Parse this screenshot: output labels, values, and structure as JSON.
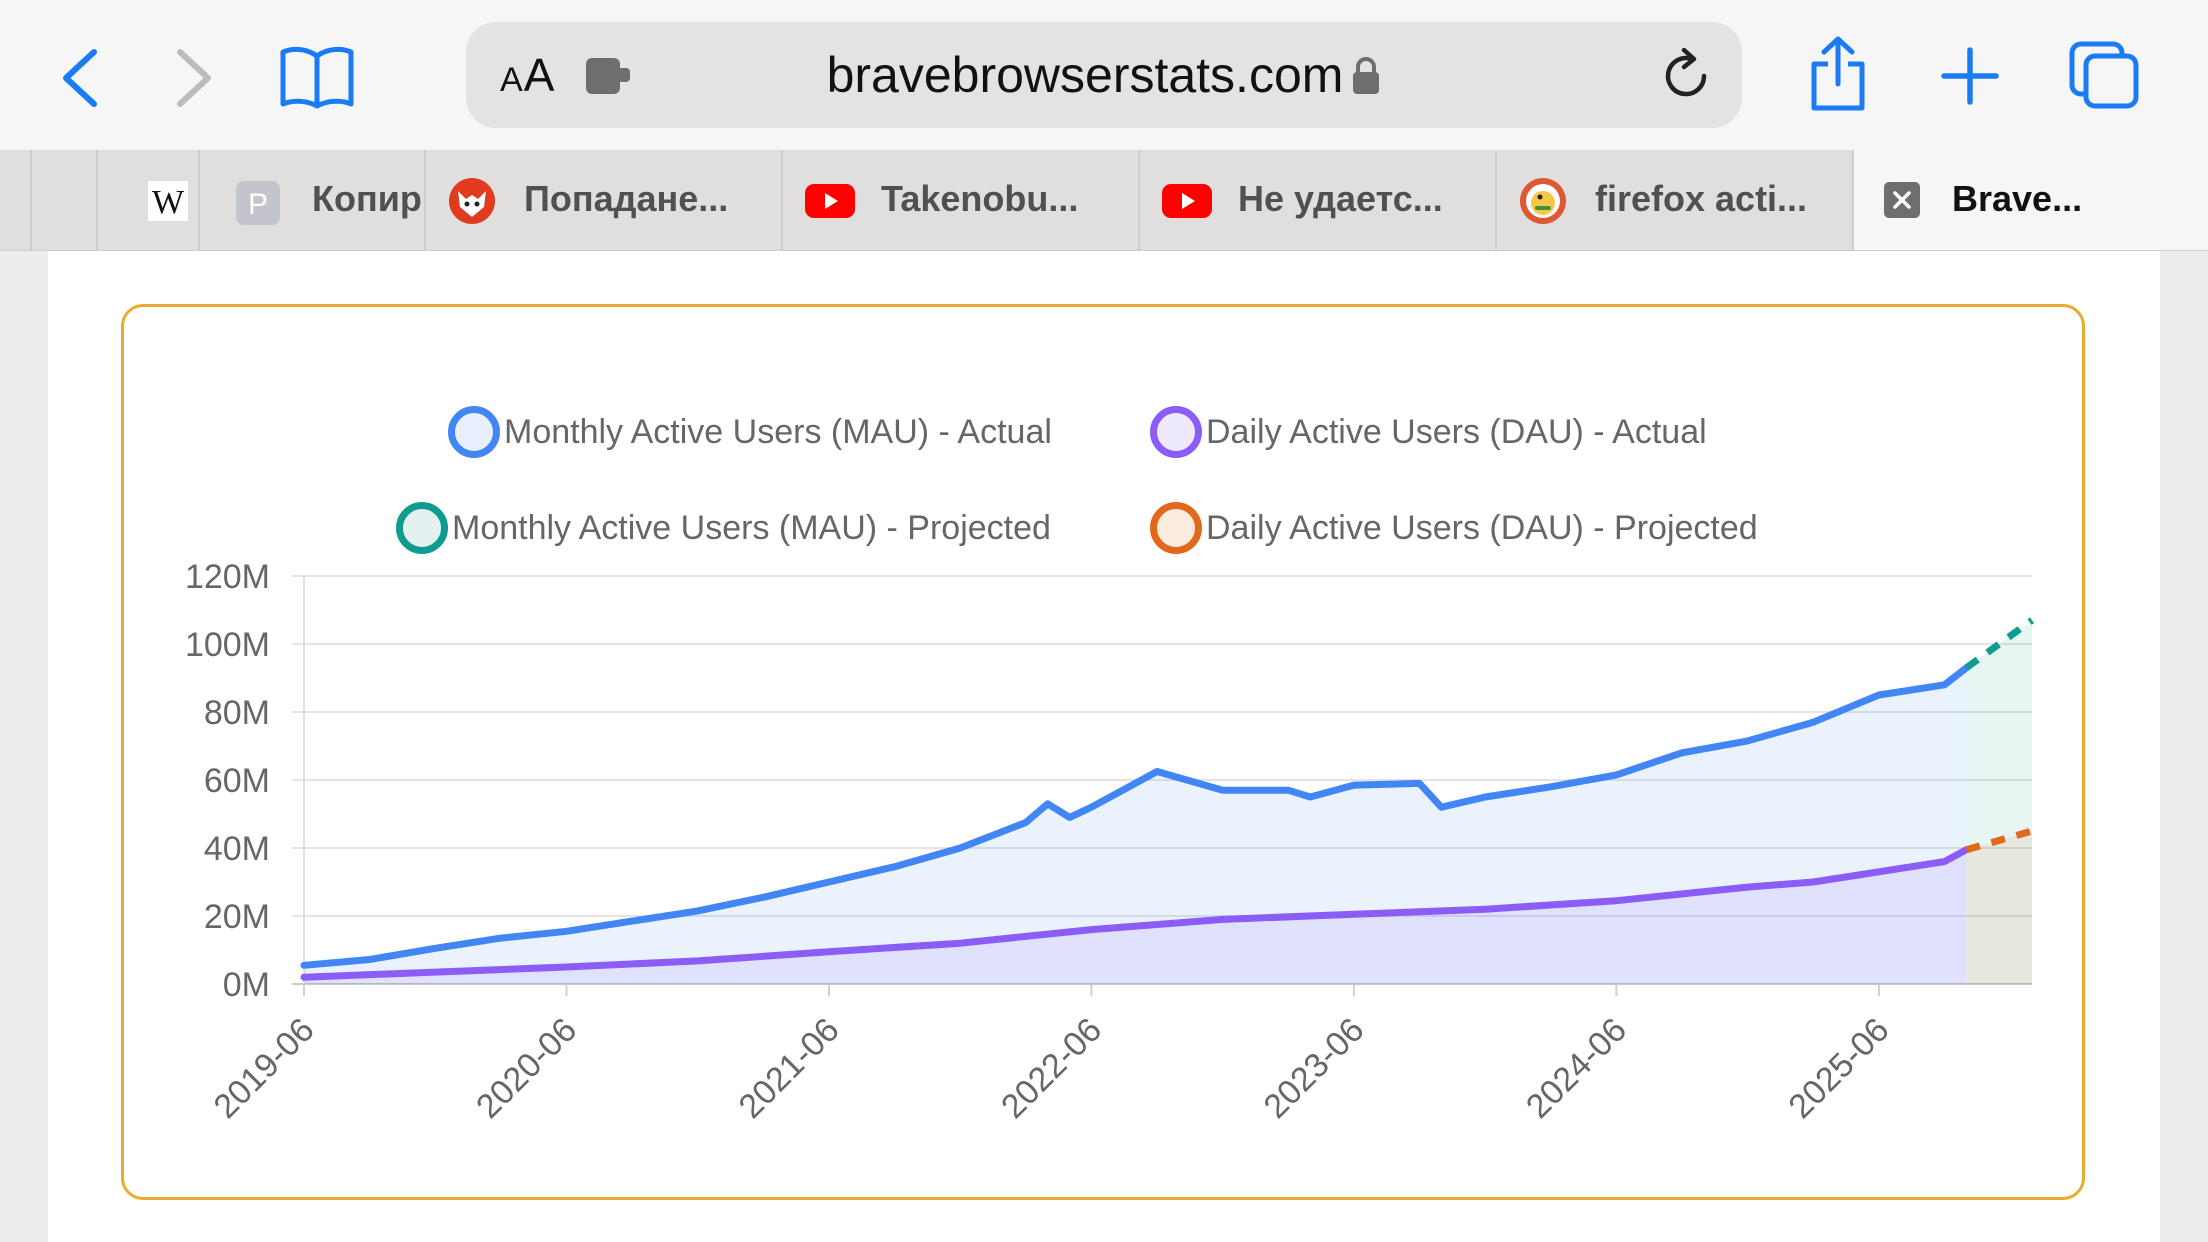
{
  "browser": {
    "url": "bravebrowserstats.com",
    "reader_label": "AA",
    "tabs": [
      {
        "label": "",
        "favicon": "blank"
      },
      {
        "label": "",
        "favicon": "wikipedia-w"
      },
      {
        "label": "Копир",
        "favicon": "p-letter"
      },
      {
        "label": "Попадане...",
        "favicon": "fox"
      },
      {
        "label": "Takenobu...",
        "favicon": "youtube"
      },
      {
        "label": "Не удаетс...",
        "favicon": "youtube"
      },
      {
        "label": "firefox acti...",
        "favicon": "duckduckgo"
      },
      {
        "label": "Brave...",
        "favicon": "close",
        "active": true
      }
    ]
  },
  "chart_data": {
    "type": "line",
    "legend": [
      {
        "name": "Monthly Active Users (MAU) - Actual",
        "color": "#4285f4"
      },
      {
        "name": "Daily Active Users (DAU) - Actual",
        "color": "#8b5cf6"
      },
      {
        "name": "Monthly Active Users (MAU) - Projected",
        "color": "#0f9b8e"
      },
      {
        "name": "Daily Active Users (DAU) - Projected",
        "color": "#e2681b"
      }
    ],
    "y_ticks": [
      "0M",
      "20M",
      "40M",
      "60M",
      "80M",
      "100M",
      "120M"
    ],
    "ylim": [
      0,
      120
    ],
    "x_ticks": [
      "2019-06",
      "2020-06",
      "2021-06",
      "2022-06",
      "2023-06",
      "2024-06",
      "2025-06"
    ],
    "xlim": [
      "2019-06",
      "2026-01"
    ],
    "series": [
      {
        "name": "Monthly Active Users (MAU) - Actual",
        "points": [
          [
            "2019-06",
            5.5
          ],
          [
            "2019-09",
            7.2
          ],
          [
            "2019-12",
            10.5
          ],
          [
            "2020-03",
            13.5
          ],
          [
            "2020-06",
            15.5
          ],
          [
            "2020-09",
            18.5
          ],
          [
            "2020-12",
            21.5
          ],
          [
            "2021-03",
            25.5
          ],
          [
            "2021-06",
            30
          ],
          [
            "2021-09",
            34.5
          ],
          [
            "2021-12",
            40
          ],
          [
            "2022-03",
            47.5
          ],
          [
            "2022-04",
            53
          ],
          [
            "2022-05",
            49
          ],
          [
            "2022-06",
            52
          ],
          [
            "2022-09",
            62.5
          ],
          [
            "2022-12",
            57
          ],
          [
            "2023-03",
            57
          ],
          [
            "2023-04",
            55
          ],
          [
            "2023-06",
            58.5
          ],
          [
            "2023-09",
            59
          ],
          [
            "2023-10",
            52
          ],
          [
            "2023-12",
            55
          ],
          [
            "2024-03",
            58
          ],
          [
            "2024-06",
            61.5
          ],
          [
            "2024-09",
            68
          ],
          [
            "2024-12",
            71.5
          ],
          [
            "2025-03",
            77
          ],
          [
            "2025-06",
            85
          ],
          [
            "2025-09",
            88
          ],
          [
            "2025-10",
            93
          ]
        ]
      },
      {
        "name": "Daily Active Users (DAU) - Actual",
        "points": [
          [
            "2019-06",
            2
          ],
          [
            "2019-12",
            3.5
          ],
          [
            "2020-06",
            5
          ],
          [
            "2020-12",
            6.8
          ],
          [
            "2021-06",
            9.5
          ],
          [
            "2021-12",
            12
          ],
          [
            "2022-06",
            16
          ],
          [
            "2022-12",
            19
          ],
          [
            "2023-06",
            20.5
          ],
          [
            "2023-12",
            22
          ],
          [
            "2024-06",
            24.5
          ],
          [
            "2024-12",
            28.5
          ],
          [
            "2025-03",
            30
          ],
          [
            "2025-06",
            33
          ],
          [
            "2025-09",
            36
          ],
          [
            "2025-10",
            39.5
          ]
        ]
      },
      {
        "name": "Monthly Active Users (MAU) - Projected",
        "points": [
          [
            "2025-10",
            93
          ],
          [
            "2026-01",
            107
          ]
        ]
      },
      {
        "name": "Daily Active Users (DAU) - Projected",
        "points": [
          [
            "2025-10",
            39.5
          ],
          [
            "2026-01",
            45
          ]
        ]
      }
    ]
  }
}
